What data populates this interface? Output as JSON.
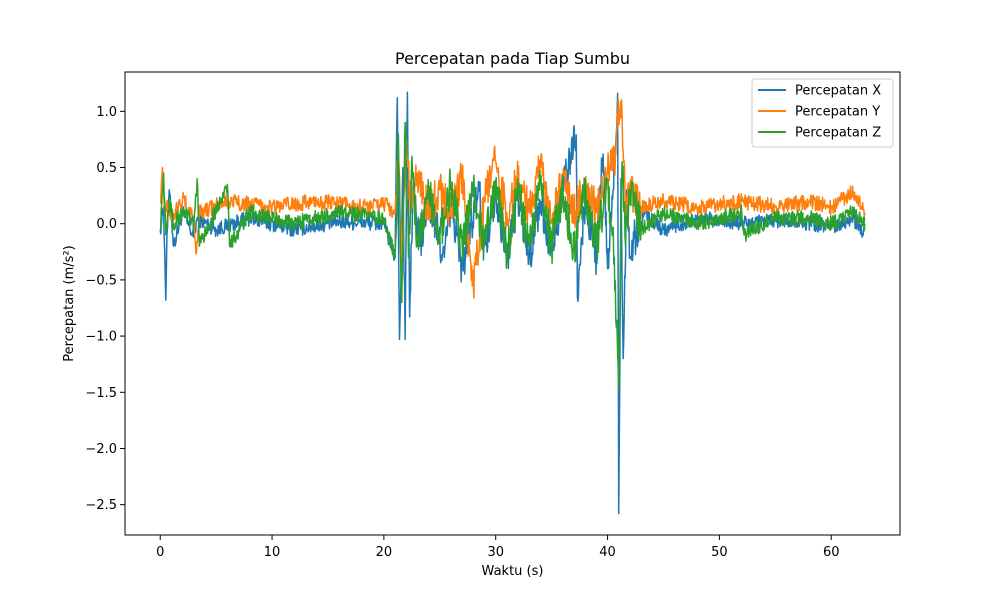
{
  "chart_data": {
    "type": "line",
    "title": "Percepatan pada Tiap Sumbu",
    "xlabel": "Waktu (s)",
    "ylabel": "Percepatan (m/s²)",
    "xlim": [
      -3.15,
      66.15
    ],
    "ylim": [
      -2.77,
      1.35
    ],
    "xticks": [
      0,
      10,
      20,
      30,
      40,
      50,
      60
    ],
    "yticks": [
      1.0,
      0.5,
      0.0,
      -0.5,
      -1.0,
      -1.5,
      -2.0,
      -2.5
    ],
    "ytick_labels": [
      "1.0",
      "0.5",
      "0.0",
      "−0.5",
      "−1.0",
      "−1.5",
      "−2.0",
      "−2.5"
    ],
    "grid": false,
    "legend_position": "top-right",
    "series": [
      {
        "name": "Percepatan X",
        "color": "#1f77b4",
        "points": [
          [
            0.0,
            -0.05
          ],
          [
            0.3,
            0.15
          ],
          [
            0.5,
            -0.68
          ],
          [
            0.6,
            -0.1
          ],
          [
            0.8,
            0.3
          ],
          [
            1.2,
            -0.2
          ],
          [
            2,
            0.1
          ],
          [
            3,
            -0.12
          ],
          [
            3.3,
            0.05
          ],
          [
            5,
            -0.05
          ],
          [
            8,
            0.05
          ],
          [
            12,
            -0.05
          ],
          [
            16,
            0.02
          ],
          [
            20,
            0.0
          ],
          [
            21.0,
            -0.3
          ],
          [
            21.2,
            1.12
          ],
          [
            21.4,
            -1.03
          ],
          [
            21.7,
            0.5
          ],
          [
            21.9,
            -1.03
          ],
          [
            22.1,
            1.17
          ],
          [
            22.3,
            -0.83
          ],
          [
            22.6,
            0.3
          ],
          [
            23.2,
            -0.2
          ],
          [
            24,
            0.2
          ],
          [
            25.4,
            -0.3
          ],
          [
            26,
            0.2
          ],
          [
            27,
            -0.4
          ],
          [
            28.5,
            0.3
          ],
          [
            29,
            -0.2
          ],
          [
            30,
            0.3
          ],
          [
            31,
            -0.3
          ],
          [
            32,
            0.25
          ],
          [
            33,
            -0.3
          ],
          [
            34,
            0.2
          ],
          [
            35,
            -0.25
          ],
          [
            36,
            0.3
          ],
          [
            37.2,
            0.79
          ],
          [
            37.3,
            -0.65
          ],
          [
            38,
            0.2
          ],
          [
            39,
            -0.3
          ],
          [
            39.6,
            0.62
          ],
          [
            40,
            -0.4
          ],
          [
            40.5,
            0.3
          ],
          [
            40.9,
            1.16
          ],
          [
            41.0,
            -2.58
          ],
          [
            41.2,
            0.4
          ],
          [
            41.4,
            -1.2
          ],
          [
            41.7,
            0.3
          ],
          [
            42,
            -0.3
          ],
          [
            43,
            0.1
          ],
          [
            45,
            -0.05
          ],
          [
            48,
            0.05
          ],
          [
            52,
            0.0
          ],
          [
            56,
            0.03
          ],
          [
            60,
            -0.02
          ],
          [
            62,
            0.05
          ],
          [
            62.8,
            -0.1
          ],
          [
            63,
            0.05
          ]
        ]
      },
      {
        "name": "Percepatan Y",
        "color": "#ff7f0e",
        "points": [
          [
            0.0,
            0.18
          ],
          [
            0.2,
            0.5
          ],
          [
            0.4,
            0.1
          ],
          [
            0.6,
            0.2
          ],
          [
            1,
            0.05
          ],
          [
            2,
            0.22
          ],
          [
            3,
            0.05
          ],
          [
            3.2,
            -0.27
          ],
          [
            3.5,
            0.1
          ],
          [
            6,
            0.2
          ],
          [
            10,
            0.15
          ],
          [
            14,
            0.2
          ],
          [
            18,
            0.15
          ],
          [
            20,
            0.18
          ],
          [
            21.0,
            0.1
          ],
          [
            21.3,
            0.65
          ],
          [
            21.6,
            -0.4
          ],
          [
            22,
            0.75
          ],
          [
            22.4,
            0.1
          ],
          [
            23,
            0.45
          ],
          [
            24,
            0.1
          ],
          [
            25,
            0.3
          ],
          [
            26,
            0.1
          ],
          [
            27,
            0.4
          ],
          [
            28,
            -0.57
          ],
          [
            29,
            0.2
          ],
          [
            30,
            0.55
          ],
          [
            31,
            0.1
          ],
          [
            32,
            0.4
          ],
          [
            33,
            0.1
          ],
          [
            34,
            0.5
          ],
          [
            35,
            0.0
          ],
          [
            36,
            0.4
          ],
          [
            37,
            0.1
          ],
          [
            38,
            0.35
          ],
          [
            39,
            0.1
          ],
          [
            40,
            0.45
          ],
          [
            40.7,
            0.6
          ],
          [
            41.0,
            0.98
          ],
          [
            41.3,
            0.95
          ],
          [
            41.6,
            0.1
          ],
          [
            42,
            0.3
          ],
          [
            43,
            0.15
          ],
          [
            45,
            0.2
          ],
          [
            48,
            0.15
          ],
          [
            52,
            0.2
          ],
          [
            55,
            0.15
          ],
          [
            58,
            0.2
          ],
          [
            60,
            0.15
          ],
          [
            62,
            0.28
          ],
          [
            63,
            0.1
          ]
        ]
      },
      {
        "name": "Percepatan Z",
        "color": "#2ca02c",
        "points": [
          [
            0.0,
            -0.05
          ],
          [
            0.3,
            0.45
          ],
          [
            0.5,
            -0.1
          ],
          [
            0.8,
            0.2
          ],
          [
            1.2,
            0.0
          ],
          [
            2,
            0.1
          ],
          [
            3,
            0.0
          ],
          [
            3.3,
            0.4
          ],
          [
            3.5,
            -0.2
          ],
          [
            6,
            0.35
          ],
          [
            6.2,
            -0.2
          ],
          [
            8,
            0.1
          ],
          [
            12,
            0.0
          ],
          [
            16,
            0.1
          ],
          [
            20,
            0.05
          ],
          [
            21.0,
            -0.3
          ],
          [
            21.3,
            0.8
          ],
          [
            21.6,
            -0.7
          ],
          [
            21.9,
            0.9
          ],
          [
            22.2,
            -0.3
          ],
          [
            22.5,
            0.6
          ],
          [
            23,
            -0.2
          ],
          [
            24,
            0.3
          ],
          [
            25,
            -0.1
          ],
          [
            26,
            0.35
          ],
          [
            27,
            -0.2
          ],
          [
            28,
            0.3
          ],
          [
            29,
            -0.2
          ],
          [
            30,
            0.35
          ],
          [
            31,
            -0.3
          ],
          [
            32,
            0.3
          ],
          [
            33,
            -0.2
          ],
          [
            34,
            0.35
          ],
          [
            35,
            -0.2
          ],
          [
            36,
            0.3
          ],
          [
            37,
            -0.25
          ],
          [
            38,
            0.3
          ],
          [
            39,
            -0.2
          ],
          [
            40,
            0.4
          ],
          [
            40.6,
            -0.3
          ],
          [
            41.0,
            -1.48
          ],
          [
            41.3,
            0.55
          ],
          [
            41.6,
            -0.2
          ],
          [
            42,
            0.3
          ],
          [
            43,
            -0.05
          ],
          [
            45,
            0.1
          ],
          [
            48,
            0.0
          ],
          [
            52,
            0.1
          ],
          [
            52.2,
            -0.1
          ],
          [
            55,
            0.05
          ],
          [
            58,
            0.05
          ],
          [
            60,
            0.0
          ],
          [
            62,
            0.1
          ],
          [
            63,
            0.0
          ]
        ]
      }
    ]
  }
}
